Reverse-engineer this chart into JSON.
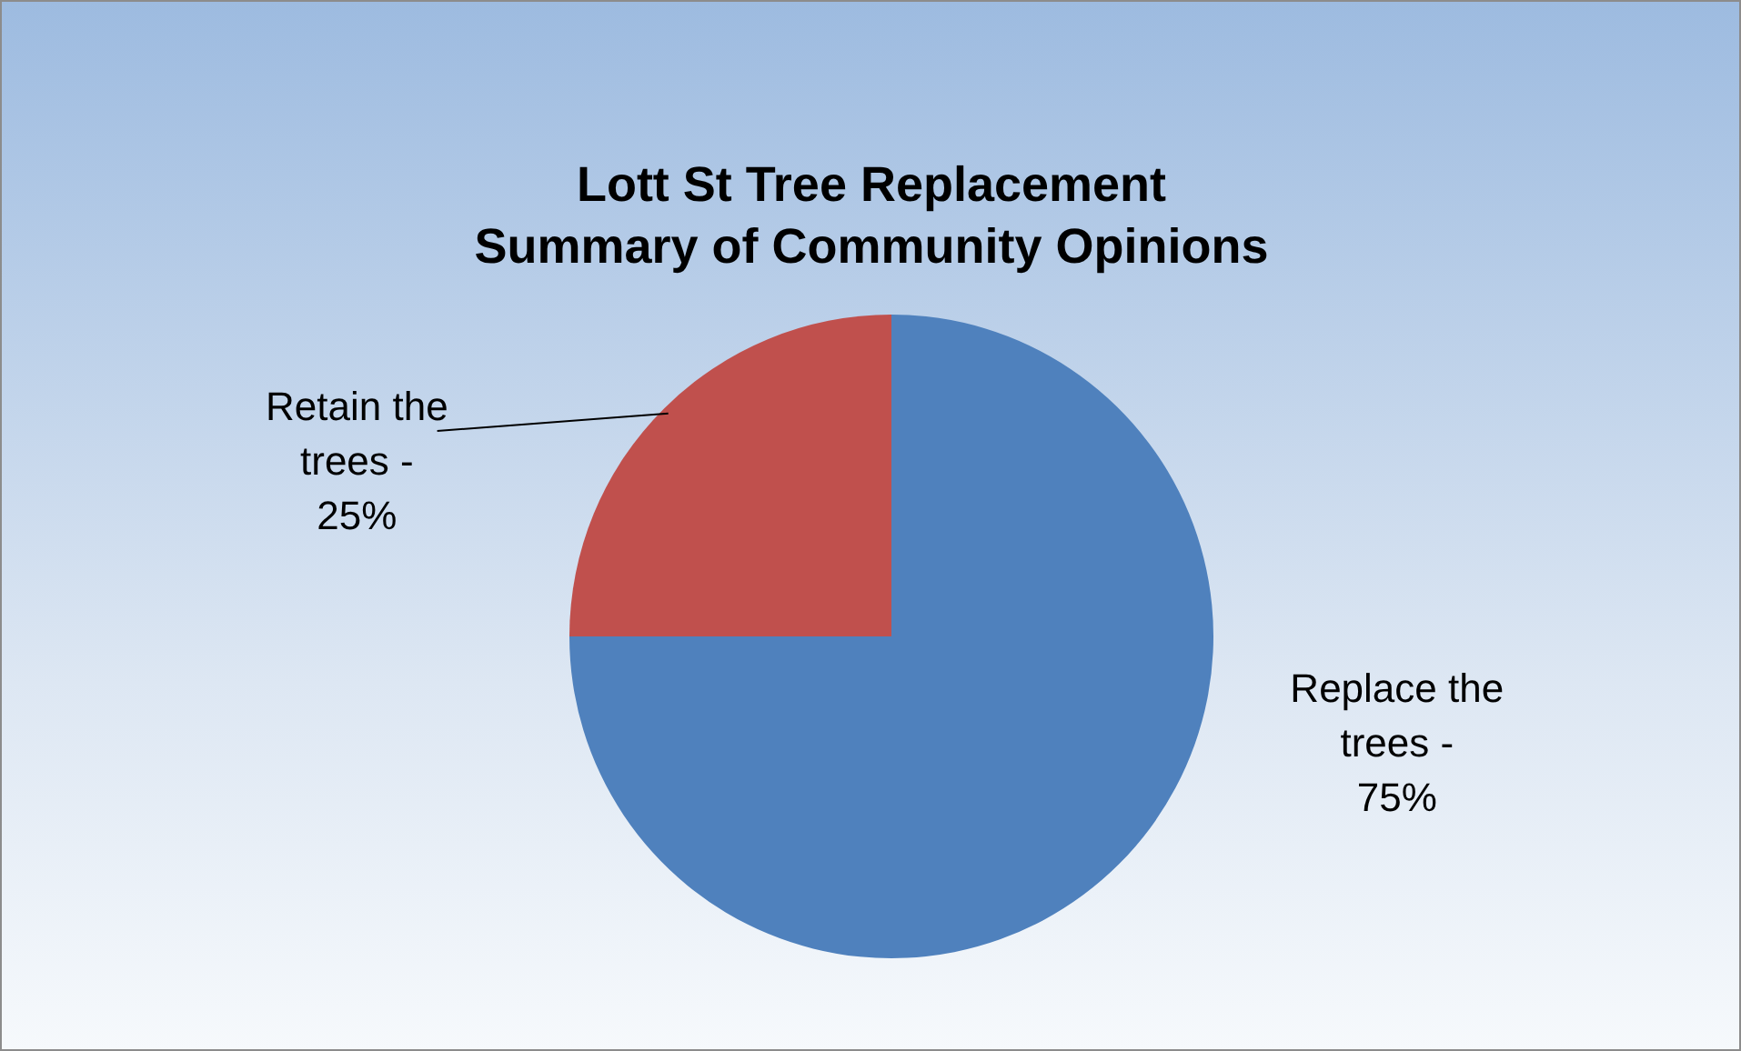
{
  "chart_data": {
    "type": "pie",
    "title": "Lott St Tree Replacement\nSummary of Community Opinions",
    "categories": [
      "Replace the trees -",
      "Retain the trees -"
    ],
    "values": [
      75,
      25
    ],
    "colors": [
      "#4f81bd",
      "#c0504d"
    ],
    "value_labels": [
      "75%",
      "25%"
    ],
    "legend": false
  }
}
